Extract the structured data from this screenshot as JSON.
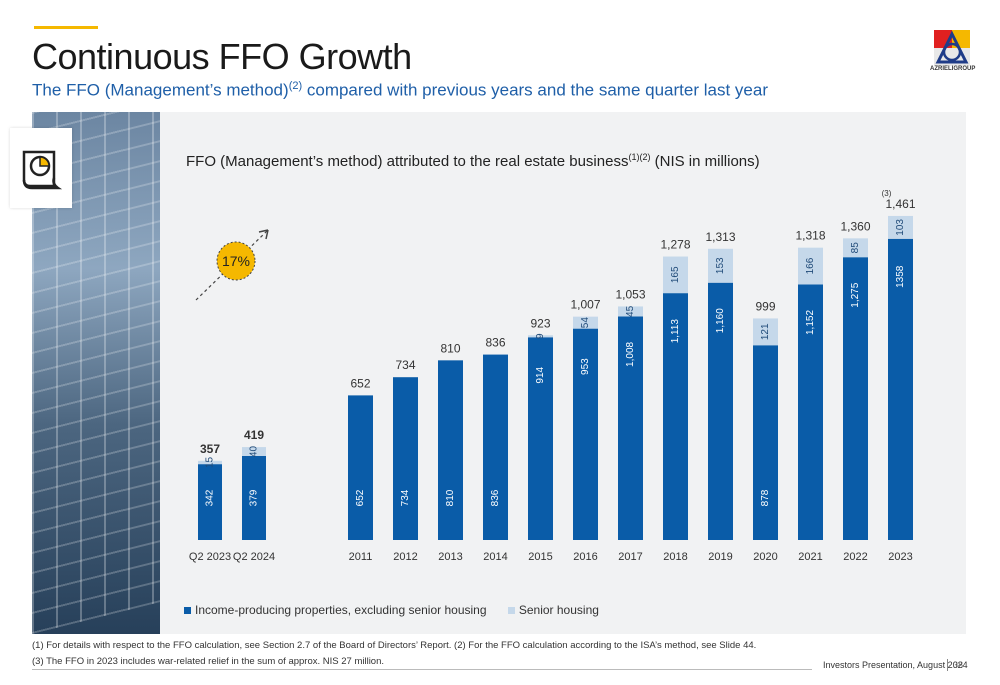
{
  "page": {
    "title": "Continuous FFO Growth",
    "subtitle": "The FFO (Management’s method)",
    "subtitle_sup": "(2)",
    "subtitle_tail": " compared with previous years and the same quarter last year",
    "logo_text": "AZRIELIGROUP",
    "chart_title": "FFO (Management’s method) attributed to the real estate business",
    "chart_title_sup": "(1)(2)",
    "chart_title_tail": " (NIS in millions)",
    "growth_badge": "17%",
    "note_marker": "(3)",
    "footnote1": "(1) For details with respect to the FFO calculation, see Section 2.7 of the Board of Directors’ Report.    (2) For the FFO calculation according to the ISA’s method, see Slide 44.",
    "footnote2": "(3) The FFO in 2023 includes war-related relief in the sum of approx. NIS 27 million.",
    "footer": "Investors Presentation, August 2024",
    "page_number": "38"
  },
  "colors": {
    "primary": "#0a5ca8",
    "secondary": "#c5d8ea",
    "accent": "#f5b800",
    "title_blue": "#1f5fa8"
  },
  "icons": [
    "report-chart-icon",
    "azrieli-logo-icon",
    "growth-arrow-icon"
  ],
  "chart_data": [
    {
      "type": "bar",
      "stacked": true,
      "categories": [
        "Q2 2023",
        "Q2 2024"
      ],
      "series": [
        {
          "name": "Income-producing properties, excluding senior housing",
          "values": [
            342,
            379
          ]
        },
        {
          "name": "Senior housing",
          "values": [
            15,
            40
          ]
        }
      ],
      "totals": [
        "357",
        "419"
      ],
      "value_labels": [
        [
          "342",
          "379"
        ],
        [
          "15",
          "40"
        ]
      ],
      "ylim": [
        0,
        1500
      ]
    },
    {
      "type": "bar",
      "stacked": true,
      "categories": [
        "2011",
        "2012",
        "2013",
        "2014",
        "2015",
        "2016",
        "2017",
        "2018",
        "2019",
        "2020",
        "2021",
        "2022",
        "2023"
      ],
      "series": [
        {
          "name": "Income-producing properties, excluding senior housing",
          "values": [
            652,
            734,
            810,
            836,
            914,
            953,
            1008,
            1113,
            1160,
            878,
            1152,
            1275,
            1358
          ]
        },
        {
          "name": "Senior housing",
          "values": [
            0,
            0,
            0,
            0,
            9,
            54,
            45,
            165,
            153,
            121,
            166,
            85,
            103
          ]
        }
      ],
      "totals": [
        "652",
        "734",
        "810",
        "836",
        "923",
        "1,007",
        "1,053",
        "1,278",
        "1,313",
        "999",
        "1,318",
        "1,360",
        "1,461"
      ],
      "value_labels": [
        [
          "652",
          "734",
          "810",
          "836",
          "914",
          "953",
          "1,008",
          "1,113",
          "1,160",
          "878",
          "1,152",
          "1,275",
          "1358"
        ],
        [
          "",
          "",
          "",
          "",
          "9",
          "54",
          "45",
          "165",
          "153",
          "121",
          "166",
          "85",
          "103"
        ]
      ],
      "ylim": [
        0,
        1500
      ]
    }
  ],
  "legend": [
    {
      "label": "Income-producing properties, excluding senior housing",
      "color": "#0a5ca8"
    },
    {
      "label": "Senior housing",
      "color": "#c5d8ea"
    }
  ]
}
